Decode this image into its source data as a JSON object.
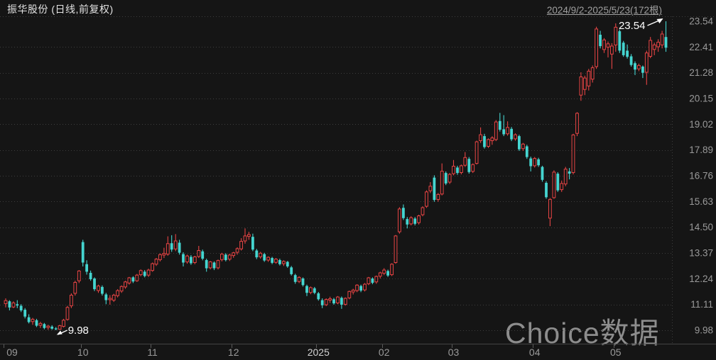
{
  "header": {
    "title": "振华股份 (日线,前复权)",
    "date_range": "2024/9/2-2025/5/23(172根)"
  },
  "watermark": "Choice数据",
  "annotations": {
    "high_label": "23.54",
    "low_label": "9.98"
  },
  "colors": {
    "background": "#151515",
    "up": "#e64444",
    "down": "#45d5d0",
    "grid": "#3e3e3e",
    "separator": "#444444",
    "axis_text": "#9a9a9a",
    "axis_text_highlight": "#d2d2d2",
    "annotation": "#ffffff"
  },
  "chart_data": {
    "type": "candlestick",
    "symbol": "振华股份",
    "period": "日线",
    "adjustment": "前复权",
    "bar_count": 172,
    "title": "振华股份 (日线,前复权)",
    "range_text": "2024/9/2-2025/5/23(172根)",
    "y_axis": {
      "min": 9.98,
      "max": 23.54,
      "tick_labels": [
        "23.54",
        "22.41",
        "21.28",
        "20.15",
        "19.02",
        "17.89",
        "16.76",
        "15.63",
        "14.50",
        "13.37",
        "12.24",
        "11.11",
        "9.98"
      ]
    },
    "x_axis": {
      "labels": [
        {
          "text": "09",
          "bar": 0,
          "highlight": false
        },
        {
          "text": "10",
          "bar": 20,
          "highlight": false
        },
        {
          "text": "11",
          "bar": 38,
          "highlight": false
        },
        {
          "text": "12",
          "bar": 59,
          "highlight": false
        },
        {
          "text": "2025",
          "bar": 81,
          "highlight": true
        },
        {
          "text": "02",
          "bar": 98,
          "highlight": false
        },
        {
          "text": "03",
          "bar": 116,
          "highlight": false
        },
        {
          "text": "04",
          "bar": 137,
          "highlight": false
        },
        {
          "text": "05",
          "bar": 158,
          "highlight": false
        }
      ]
    },
    "extremes": {
      "high": {
        "value": 23.54,
        "bar": 171
      },
      "low": {
        "value": 9.98,
        "bar": 13
      }
    },
    "ohlc": [
      [
        11.15,
        11.38,
        10.98,
        11.28
      ],
      [
        11.25,
        11.3,
        10.85,
        10.98
      ],
      [
        11.0,
        11.25,
        10.95,
        11.18
      ],
      [
        11.12,
        11.3,
        10.95,
        11.06
      ],
      [
        11.05,
        11.12,
        10.78,
        10.85
      ],
      [
        10.88,
        10.95,
        10.5,
        10.58
      ],
      [
        10.55,
        10.68,
        10.28,
        10.34
      ],
      [
        10.36,
        10.52,
        10.22,
        10.46
      ],
      [
        10.42,
        10.48,
        10.12,
        10.18
      ],
      [
        10.2,
        10.35,
        10.08,
        10.28
      ],
      [
        10.25,
        10.3,
        10.02,
        10.08
      ],
      [
        10.1,
        10.22,
        10.0,
        10.16
      ],
      [
        10.14,
        10.2,
        10.0,
        10.05
      ],
      [
        10.06,
        10.12,
        9.98,
        10.02
      ],
      [
        10.02,
        10.22,
        10.0,
        10.18
      ],
      [
        10.15,
        10.48,
        10.1,
        10.42
      ],
      [
        10.45,
        11.05,
        10.4,
        10.98
      ],
      [
        11.05,
        11.6,
        10.95,
        11.52
      ],
      [
        11.6,
        12.15,
        11.5,
        12.08
      ],
      [
        12.15,
        12.62,
        12.05,
        12.58
      ],
      [
        13.85,
        13.95,
        12.78,
        12.95
      ],
      [
        12.88,
        13.05,
        12.42,
        12.55
      ],
      [
        12.5,
        12.6,
        12.15,
        12.22
      ],
      [
        12.25,
        12.3,
        11.7,
        11.78
      ],
      [
        11.72,
        11.98,
        11.62,
        11.92
      ],
      [
        11.88,
        11.95,
        11.5,
        11.58
      ],
      [
        11.55,
        11.62,
        11.12,
        11.3
      ],
      [
        11.32,
        11.52,
        11.1,
        11.38
      ],
      [
        11.3,
        11.58,
        11.22,
        11.52
      ],
      [
        11.5,
        11.78,
        11.42,
        11.72
      ],
      [
        11.7,
        11.95,
        11.62,
        11.9
      ],
      [
        11.88,
        12.15,
        11.8,
        12.1
      ],
      [
        12.05,
        12.32,
        11.98,
        12.28
      ],
      [
        12.3,
        12.35,
        12.05,
        12.12
      ],
      [
        12.15,
        12.45,
        12.1,
        12.4
      ],
      [
        12.42,
        12.65,
        12.35,
        12.6
      ],
      [
        12.55,
        12.62,
        12.3,
        12.36
      ],
      [
        12.4,
        12.68,
        12.32,
        12.62
      ],
      [
        12.6,
        12.95,
        12.55,
        12.9
      ],
      [
        12.88,
        13.15,
        12.8,
        13.1
      ],
      [
        13.08,
        13.35,
        13.0,
        13.3
      ],
      [
        13.28,
        13.6,
        13.15,
        13.35
      ],
      [
        13.32,
        14.1,
        13.25,
        13.78
      ],
      [
        13.8,
        14.15,
        13.42,
        13.52
      ],
      [
        13.55,
        14.2,
        13.45,
        13.9
      ],
      [
        13.82,
        13.95,
        13.3,
        13.38
      ],
      [
        13.32,
        13.4,
        12.78,
        12.95
      ],
      [
        12.98,
        13.3,
        12.9,
        13.24
      ],
      [
        13.2,
        13.28,
        12.85,
        12.92
      ],
      [
        12.95,
        13.25,
        12.88,
        13.2
      ],
      [
        13.22,
        13.68,
        13.15,
        13.48
      ],
      [
        13.44,
        13.52,
        13.05,
        13.12
      ],
      [
        13.06,
        13.12,
        12.55,
        12.7
      ],
      [
        12.72,
        13.02,
        12.65,
        12.98
      ],
      [
        12.95,
        13.0,
        12.62,
        12.7
      ],
      [
        12.72,
        13.08,
        12.65,
        13.04
      ],
      [
        13.08,
        13.38,
        13.0,
        13.32
      ],
      [
        13.3,
        13.36,
        13.0,
        13.06
      ],
      [
        13.1,
        13.34,
        13.02,
        13.28
      ],
      [
        13.26,
        13.42,
        13.16,
        13.38
      ],
      [
        13.4,
        13.62,
        13.3,
        13.56
      ],
      [
        13.55,
        14.02,
        13.48,
        13.88
      ],
      [
        13.9,
        14.45,
        13.78,
        14.12
      ],
      [
        14.1,
        14.3,
        13.95,
        14.18
      ],
      [
        14.08,
        14.22,
        13.45,
        13.52
      ],
      [
        13.48,
        13.55,
        13.1,
        13.18
      ],
      [
        13.2,
        13.42,
        13.12,
        13.36
      ],
      [
        13.32,
        13.38,
        12.98,
        13.04
      ],
      [
        13.06,
        13.22,
        12.98,
        13.18
      ],
      [
        13.15,
        13.2,
        12.88,
        12.94
      ],
      [
        12.96,
        13.15,
        12.9,
        13.1
      ],
      [
        13.06,
        13.12,
        12.82,
        12.88
      ],
      [
        12.9,
        13.05,
        12.8,
        13.0
      ],
      [
        12.98,
        13.02,
        12.72,
        12.78
      ],
      [
        12.74,
        12.8,
        12.38,
        12.44
      ],
      [
        12.4,
        12.46,
        12.02,
        12.1
      ],
      [
        12.12,
        12.35,
        12.05,
        12.3
      ],
      [
        12.25,
        12.3,
        11.9,
        11.96
      ],
      [
        11.92,
        11.98,
        11.48,
        11.62
      ],
      [
        11.64,
        11.9,
        11.56,
        11.85
      ],
      [
        11.82,
        11.88,
        11.56,
        11.62
      ],
      [
        11.6,
        11.66,
        11.28,
        11.34
      ],
      [
        11.3,
        11.38,
        10.95,
        11.08
      ],
      [
        11.1,
        11.38,
        11.04,
        11.33
      ],
      [
        11.3,
        11.45,
        11.18,
        11.36
      ],
      [
        11.34,
        11.4,
        11.1,
        11.16
      ],
      [
        11.18,
        11.48,
        11.12,
        11.44
      ],
      [
        11.4,
        11.46,
        10.92,
        11.1
      ],
      [
        11.12,
        11.42,
        11.06,
        11.38
      ],
      [
        11.4,
        11.72,
        11.34,
        11.68
      ],
      [
        11.66,
        11.8,
        11.55,
        11.74
      ],
      [
        11.72,
        12.0,
        11.65,
        11.96
      ],
      [
        11.92,
        11.98,
        11.65,
        11.72
      ],
      [
        11.75,
        12.05,
        11.68,
        12.0
      ],
      [
        12.02,
        12.32,
        11.96,
        12.28
      ],
      [
        12.25,
        12.3,
        12.0,
        12.06
      ],
      [
        12.1,
        12.38,
        12.02,
        12.34
      ],
      [
        12.35,
        12.55,
        12.25,
        12.5
      ],
      [
        12.48,
        12.7,
        12.4,
        12.62
      ],
      [
        12.58,
        12.64,
        12.32,
        12.38
      ],
      [
        12.42,
        12.92,
        12.36,
        12.88
      ],
      [
        12.95,
        14.16,
        12.9,
        14.12
      ],
      [
        14.3,
        15.38,
        14.22,
        15.3
      ],
      [
        15.35,
        15.5,
        14.82,
        14.9
      ],
      [
        14.86,
        14.95,
        14.45,
        14.62
      ],
      [
        14.65,
        14.98,
        14.58,
        14.92
      ],
      [
        14.88,
        14.95,
        14.58,
        14.65
      ],
      [
        14.7,
        15.05,
        14.62,
        15.0
      ],
      [
        15.05,
        15.42,
        14.98,
        15.36
      ],
      [
        15.42,
        16.12,
        15.35,
        16.05
      ],
      [
        16.1,
        16.48,
        16.0,
        16.3
      ],
      [
        16.68,
        16.78,
        15.62,
        15.7
      ],
      [
        15.72,
        16.0,
        15.62,
        15.94
      ],
      [
        15.96,
        17.3,
        15.9,
        16.96
      ],
      [
        16.88,
        16.95,
        16.35,
        16.42
      ],
      [
        16.48,
        16.88,
        16.4,
        16.82
      ],
      [
        16.85,
        17.45,
        16.78,
        17.18
      ],
      [
        17.12,
        17.2,
        16.8,
        16.88
      ],
      [
        16.9,
        17.25,
        16.82,
        17.2
      ],
      [
        17.22,
        17.8,
        17.15,
        17.56
      ],
      [
        17.5,
        17.58,
        16.85,
        16.92
      ],
      [
        16.95,
        17.3,
        16.88,
        17.25
      ],
      [
        17.3,
        18.3,
        17.25,
        18.25
      ],
      [
        18.3,
        18.88,
        18.2,
        18.56
      ],
      [
        18.5,
        18.6,
        17.95,
        18.02
      ],
      [
        18.05,
        18.4,
        17.98,
        18.35
      ],
      [
        18.3,
        18.5,
        18.12,
        18.42
      ],
      [
        18.35,
        19.2,
        18.28,
        19.12
      ],
      [
        19.16,
        19.52,
        18.7,
        18.78
      ],
      [
        18.8,
        19.42,
        18.5,
        18.58
      ],
      [
        18.6,
        19.15,
        18.52,
        18.88
      ],
      [
        18.82,
        18.9,
        18.28,
        18.36
      ],
      [
        18.38,
        18.62,
        18.3,
        18.56
      ],
      [
        18.5,
        18.56,
        17.85,
        17.92
      ],
      [
        17.95,
        18.2,
        17.85,
        18.15
      ],
      [
        18.05,
        18.12,
        17.5,
        17.58
      ],
      [
        17.52,
        17.6,
        16.95,
        17.18
      ],
      [
        17.2,
        17.58,
        17.12,
        17.52
      ],
      [
        17.48,
        17.55,
        17.15,
        17.22
      ],
      [
        17.15,
        17.2,
        16.5,
        16.58
      ],
      [
        16.45,
        16.52,
        15.75,
        15.82
      ],
      [
        14.9,
        15.78,
        14.55,
        15.72
      ],
      [
        15.8,
        17.0,
        15.75,
        16.92
      ],
      [
        16.85,
        16.92,
        16.05,
        16.12
      ],
      [
        16.15,
        16.55,
        16.05,
        16.42
      ],
      [
        16.4,
        17.15,
        16.3,
        17.05
      ],
      [
        16.95,
        17.1,
        16.6,
        16.85
      ],
      [
        16.9,
        18.6,
        16.82,
        18.55
      ],
      [
        18.62,
        19.55,
        18.5,
        19.5
      ],
      [
        20.3,
        21.3,
        20.05,
        21.1
      ],
      [
        20.55,
        21.15,
        20.3,
        21.05
      ],
      [
        20.7,
        21.45,
        20.5,
        21.35
      ],
      [
        21.0,
        21.6,
        20.85,
        21.5
      ],
      [
        21.55,
        23.3,
        21.45,
        23.2
      ],
      [
        22.95,
        23.12,
        22.35,
        22.45
      ],
      [
        22.3,
        22.8,
        22.15,
        22.72
      ],
      [
        22.4,
        22.65,
        21.95,
        22.55
      ],
      [
        22.1,
        22.58,
        21.45,
        22.45
      ],
      [
        22.5,
        23.45,
        22.2,
        23.28
      ],
      [
        23.1,
        23.18,
        22.15,
        22.25
      ],
      [
        22.6,
        22.68,
        21.98,
        22.05
      ],
      [
        22.25,
        22.52,
        21.9,
        21.98
      ],
      [
        22.0,
        22.1,
        21.55,
        21.62
      ],
      [
        21.7,
        21.78,
        21.18,
        21.42
      ],
      [
        21.45,
        21.68,
        21.35,
        21.6
      ],
      [
        21.55,
        21.6,
        21.05,
        21.28
      ],
      [
        21.3,
        22.25,
        20.75,
        22.15
      ],
      [
        22.0,
        22.85,
        21.92,
        22.7
      ],
      [
        22.3,
        22.6,
        22.05,
        22.5
      ],
      [
        22.42,
        22.75,
        22.2,
        22.62
      ],
      [
        22.5,
        23.12,
        22.35,
        22.98
      ],
      [
        22.85,
        23.54,
        22.2,
        22.38
      ]
    ]
  }
}
